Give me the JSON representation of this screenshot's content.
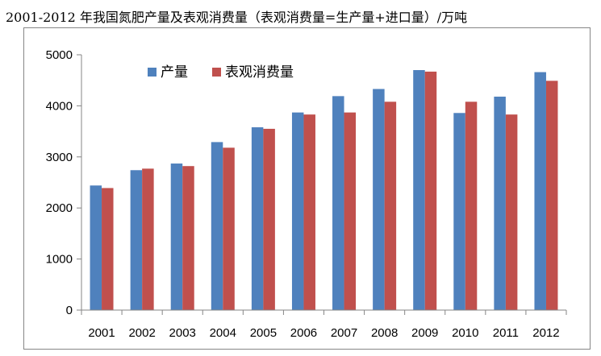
{
  "chart_data": {
    "type": "bar",
    "title": "2001-2012 年我国氮肥产量及表观消费量（表观消费量=生产量+进口量）/万吨",
    "categories": [
      "2001",
      "2002",
      "2003",
      "2004",
      "2005",
      "2006",
      "2007",
      "2008",
      "2009",
      "2010",
      "2011",
      "2012"
    ],
    "series": [
      {
        "name": "产量",
        "color": "#4F81BD",
        "values": [
          2440,
          2740,
          2870,
          3290,
          3580,
          3870,
          4190,
          4330,
          4700,
          3860,
          4180,
          4660
        ]
      },
      {
        "name": "表观消费量",
        "color": "#C0504D",
        "values": [
          2390,
          2770,
          2820,
          3180,
          3550,
          3830,
          3870,
          4080,
          4670,
          4080,
          3830,
          4490
        ]
      }
    ],
    "ylim": [
      0,
      5000
    ],
    "yticks": [
      "0",
      "1000",
      "2000",
      "3000",
      "4000",
      "5000"
    ],
    "grid": false,
    "legend_position": "top-left"
  }
}
